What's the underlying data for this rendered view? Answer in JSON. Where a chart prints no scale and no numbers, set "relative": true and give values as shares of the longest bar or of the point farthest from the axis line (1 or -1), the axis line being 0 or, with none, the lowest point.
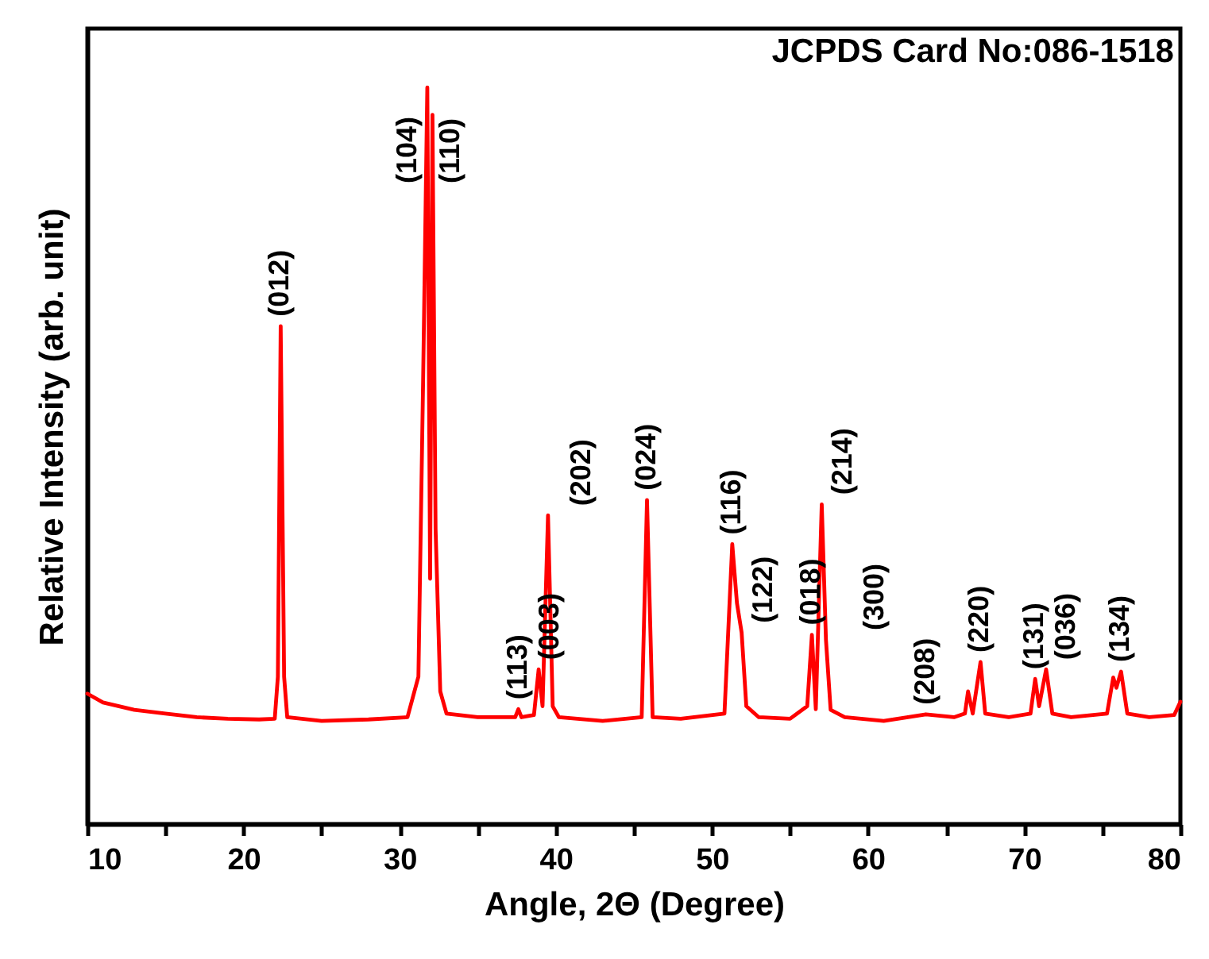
{
  "chart_data": {
    "type": "line",
    "relative": true,
    "xlabel": "Angle, 2Θ (Degree)",
    "ylabel": "Relative Intensity (arb. unit)",
    "xlim": [
      10,
      80
    ],
    "xticks": [
      10,
      {
        "value": 15,
        "label": null
      },
      20,
      {
        "value": 25,
        "label": null
      },
      30,
      {
        "value": 35,
        "label": null
      },
      40,
      {
        "value": 45,
        "label": null
      },
      50,
      {
        "value": 55,
        "label": null
      },
      60,
      {
        "value": 65,
        "label": null
      },
      70,
      {
        "value": 75,
        "label": null
      },
      80
    ],
    "grid": false,
    "marker": "none",
    "line_style": "solid",
    "series": [
      {
        "color": "#ff0000",
        "x": [
          10,
          11,
          13,
          15,
          17,
          19,
          21,
          22.0,
          22.2,
          22.38,
          22.6,
          22.8,
          25,
          28,
          30.5,
          31.2,
          31.5,
          31.77,
          31.95,
          32.1,
          32.3,
          32.6,
          33,
          35,
          37.4,
          37.6,
          37.8,
          38.6,
          38.9,
          39.15,
          39.5,
          39.8,
          40.2,
          43,
          45.5,
          45.84,
          46.2,
          48,
          50.8,
          51.3,
          51.6,
          51.9,
          52.2,
          53,
          55,
          56.1,
          56.4,
          56.65,
          57.03,
          57.3,
          57.6,
          58.5,
          61,
          63.7,
          65.5,
          66.2,
          66.4,
          66.7,
          67.2,
          67.5,
          69,
          70.4,
          70.7,
          70.95,
          71.4,
          71.8,
          73,
          75.3,
          75.7,
          75.9,
          76.2,
          76.6,
          78,
          79.6,
          80
        ],
        "values": [
          0.177,
          0.165,
          0.155,
          0.15,
          0.145,
          0.143,
          0.142,
          0.143,
          0.2,
          0.676,
          0.2,
          0.145,
          0.14,
          0.142,
          0.145,
          0.2,
          0.6,
          1.0,
          0.333,
          0.963,
          0.4,
          0.18,
          0.15,
          0.145,
          0.145,
          0.156,
          0.145,
          0.148,
          0.21,
          0.16,
          0.419,
          0.16,
          0.145,
          0.14,
          0.145,
          0.44,
          0.145,
          0.143,
          0.15,
          0.38,
          0.3,
          0.26,
          0.16,
          0.145,
          0.143,
          0.16,
          0.257,
          0.156,
          0.434,
          0.25,
          0.155,
          0.145,
          0.14,
          0.149,
          0.145,
          0.15,
          0.18,
          0.15,
          0.22,
          0.15,
          0.145,
          0.15,
          0.197,
          0.16,
          0.21,
          0.15,
          0.145,
          0.15,
          0.199,
          0.185,
          0.207,
          0.15,
          0.145,
          0.148,
          0.166
        ]
      }
    ],
    "annotations": [
      "JCPDS Card No:086-1518",
      {
        "text": "(012)",
        "x": 22.38,
        "y": 0.676
      },
      {
        "text": "(104)",
        "x": 31.77,
        "y": 1.0
      },
      {
        "text": "(110)",
        "x": 32.1,
        "y": 0.963
      },
      {
        "text": "(113)",
        "x": 37.6,
        "y": 0.156
      },
      {
        "text": "(003)",
        "x": 38.9,
        "y": 0.21
      },
      {
        "text": "(202)",
        "x": 39.5,
        "y": 0.419
      },
      {
        "text": "(024)",
        "x": 45.84,
        "y": 0.44
      },
      {
        "text": "(116)",
        "x": 51.3,
        "y": 0.38
      },
      {
        "text": "(122)",
        "x": 51.9,
        "y": 0.26
      },
      {
        "text": "(018)",
        "x": 56.4,
        "y": 0.257
      },
      {
        "text": "(214)",
        "x": 57.03,
        "y": 0.434
      },
      {
        "text": "(300)",
        "x": 57.3,
        "y": 0.25
      },
      {
        "text": "(208)",
        "x": 63.7,
        "y": 0.149
      },
      {
        "text": "(220)",
        "x": 67.2,
        "y": 0.22
      },
      {
        "text": "(131)",
        "x": 70.7,
        "y": 0.197
      },
      {
        "text": "(036)",
        "x": 71.4,
        "y": 0.21
      },
      {
        "text": "(134)",
        "x": 76.2,
        "y": 0.207
      }
    ]
  }
}
